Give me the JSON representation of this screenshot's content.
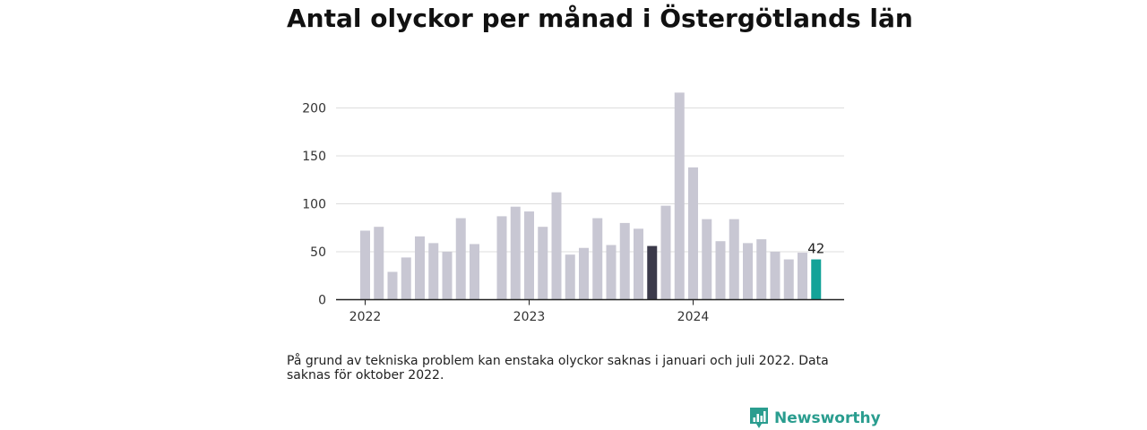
{
  "title": "Antal olyckor per månad i Östergötlands län",
  "footnote": "På grund av tekniska problem kan enstaka olyckor saknas i januari och juli 2022. Data saknas för oktober 2022.",
  "brand": {
    "name": "Newsworthy",
    "icon": "bar-chart-speech-bubble-icon",
    "color": "#2a9d8f"
  },
  "colors": {
    "bar": "#c8c7d3",
    "highlight_dark": "#3b3a4a",
    "highlight_latest": "#13a398",
    "grid": "#dddddd",
    "axis": "#222222"
  },
  "chart_data": {
    "type": "bar",
    "x": [
      "2022-01",
      "2022-02",
      "2022-03",
      "2022-04",
      "2022-05",
      "2022-06",
      "2022-07",
      "2022-08",
      "2022-09",
      "2022-10",
      "2022-11",
      "2022-12",
      "2023-01",
      "2023-02",
      "2023-03",
      "2023-04",
      "2023-05",
      "2023-06",
      "2023-07",
      "2023-08",
      "2023-09",
      "2023-10",
      "2023-11",
      "2023-12",
      "2024-01",
      "2024-02",
      "2024-03",
      "2024-04",
      "2024-05",
      "2024-06",
      "2024-07",
      "2024-08",
      "2024-09",
      "2024-10"
    ],
    "values": [
      72,
      76,
      29,
      44,
      66,
      59,
      50,
      85,
      58,
      null,
      87,
      97,
      92,
      76,
      112,
      47,
      54,
      85,
      57,
      80,
      74,
      56,
      98,
      216,
      138,
      84,
      61,
      84,
      59,
      63,
      50,
      42,
      49,
      42
    ],
    "highlight": {
      "2023-10": "highlight_dark",
      "2024-10": "highlight_latest"
    },
    "data_labels": [
      {
        "x": "2024-10",
        "text": "42"
      }
    ],
    "y_ticks": [
      0,
      50,
      100,
      150,
      200
    ],
    "ylim": [
      0,
      230
    ],
    "x_tick_labels": [
      {
        "x": "2022-01",
        "text": "2022"
      },
      {
        "x": "2023-01",
        "text": "2023"
      },
      {
        "x": "2024-01",
        "text": "2024"
      }
    ],
    "grid": true,
    "xlabel": "",
    "ylabel": ""
  }
}
